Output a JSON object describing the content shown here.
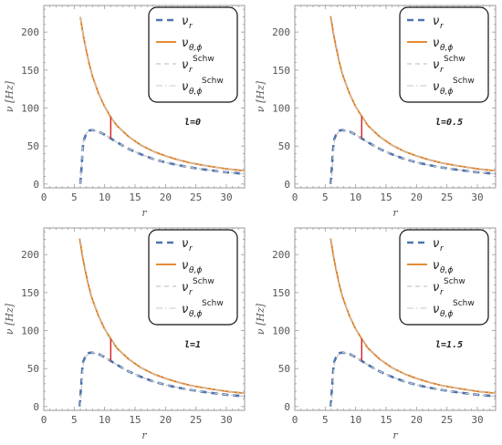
{
  "chart_data": [
    {
      "type": "line",
      "xlabel": "r",
      "ylabel": "ν [Hz]",
      "annotation": "l=0",
      "xlim": [
        0,
        33
      ],
      "ylim": [
        -5,
        235
      ],
      "xticks": [
        "0",
        "5",
        "10",
        "15",
        "20",
        "25",
        "30"
      ],
      "yticks": [
        "0",
        "50",
        "100",
        "150",
        "200"
      ],
      "legend": {
        "position": "top-right",
        "entries": [
          {
            "main": "ν",
            "sub": "r",
            "sup": ""
          },
          {
            "main": "ν",
            "sub": "θ,ϕ",
            "sup": ""
          },
          {
            "main": "ν",
            "sub": "r",
            "sup": "Schw"
          },
          {
            "main": "ν",
            "sub": "θ,ϕ",
            "sup": "Schw"
          }
        ]
      },
      "series": [
        {
          "name": "νr",
          "x": [
            6.0,
            6.5,
            7.0,
            7.5,
            8.0,
            9.0,
            10.0,
            11.0,
            12.0,
            14.0,
            16.0,
            18.0,
            20.0,
            22.0,
            24.0,
            26.0,
            28.0,
            30.0,
            33.0
          ],
          "y": [
            0,
            56,
            67,
            70.5,
            71,
            69,
            65,
            60,
            55,
            46,
            39,
            33,
            28.5,
            25,
            22,
            19.5,
            17.5,
            15.5,
            13.5
          ]
        },
        {
          "name": "νθ,ϕ",
          "x": [
            6.0,
            6.5,
            7.0,
            7.5,
            8.0,
            9.0,
            10.0,
            11.0,
            12.0,
            14.0,
            16.0,
            18.0,
            20.0,
            22.0,
            24.0,
            26.0,
            28.0,
            30.0,
            33.0
          ],
          "y": [
            220,
            195,
            175,
            157,
            142,
            119,
            102,
            88,
            77,
            62,
            51,
            43,
            37,
            32,
            28,
            25,
            22.5,
            20,
            17.5
          ]
        },
        {
          "name": "νr Schw",
          "x": [
            6.0,
            6.5,
            7.0,
            7.5,
            8.0,
            9.0,
            10.0,
            11.0,
            12.0,
            14.0,
            16.0,
            18.0,
            20.0,
            22.0,
            24.0,
            26.0,
            28.0,
            30.0,
            33.0
          ],
          "y": [
            0,
            56,
            67,
            70.5,
            71,
            69,
            65,
            60,
            55,
            46,
            39,
            33,
            28.5,
            25,
            22,
            19.5,
            17.5,
            15.5,
            13.5
          ]
        },
        {
          "name": "νθ,ϕ Schw",
          "x": [
            6.0,
            6.5,
            7.0,
            7.5,
            8.0,
            9.0,
            10.0,
            11.0,
            12.0,
            14.0,
            16.0,
            18.0,
            20.0,
            22.0,
            24.0,
            26.0,
            28.0,
            30.0,
            33.0
          ],
          "y": [
            220,
            195,
            175,
            157,
            142,
            119,
            102,
            88,
            77,
            62,
            51,
            43,
            37,
            32,
            28,
            25,
            22.5,
            20,
            17.5
          ]
        }
      ],
      "marker": {
        "x": 11,
        "y_low": 60,
        "y_high": 88
      },
      "colors": {
        "nu_r": "#4d73b0",
        "nu_theta_phi": "#e07b1a",
        "schw": "#c8c8c8",
        "marker": "#d62020",
        "frame": "#999999"
      }
    },
    {
      "type": "line",
      "xlabel": "r",
      "ylabel": "ν [Hz]",
      "annotation": "l=0.5",
      "xlim": [
        0,
        33
      ],
      "ylim": [
        -5,
        235
      ],
      "xticks": [
        "0",
        "5",
        "10",
        "15",
        "20",
        "25",
        "30"
      ],
      "yticks": [
        "0",
        "50",
        "100",
        "150",
        "200"
      ],
      "legend": {
        "position": "top-right",
        "entries": [
          {
            "main": "ν",
            "sub": "r",
            "sup": ""
          },
          {
            "main": "ν",
            "sub": "θ,ϕ",
            "sup": ""
          },
          {
            "main": "ν",
            "sub": "r",
            "sup": "Schw"
          },
          {
            "main": "ν",
            "sub": "θ,ϕ",
            "sup": "Schw"
          }
        ]
      },
      "series": [
        {
          "name": "νr",
          "x": [
            5.9,
            6.4,
            6.9,
            7.4,
            7.9,
            9.0,
            10.0,
            11.0,
            12.0,
            14.0,
            16.0,
            18.0,
            20.0,
            22.0,
            24.0,
            26.0,
            28.0,
            30.0,
            33.0
          ],
          "y": [
            0,
            57,
            67.5,
            70.5,
            71,
            69,
            65,
            60,
            55,
            46,
            39,
            33,
            28.5,
            25,
            22,
            19.5,
            17.5,
            15.5,
            13.5
          ]
        },
        {
          "name": "νθ,ϕ",
          "x": [
            5.9,
            6.4,
            6.9,
            7.4,
            7.9,
            9.0,
            10.0,
            11.0,
            12.0,
            14.0,
            16.0,
            18.0,
            20.0,
            22.0,
            24.0,
            26.0,
            28.0,
            30.0,
            33.0
          ],
          "y": [
            221,
            196,
            176,
            158,
            143,
            119,
            102,
            89,
            77,
            62,
            51,
            43,
            37,
            32,
            28,
            25,
            22.5,
            20,
            17.5
          ]
        },
        {
          "name": "νr Schw",
          "x": [
            6.0,
            6.5,
            7.0,
            7.5,
            8.0,
            9.0,
            10.0,
            11.0,
            12.0,
            14.0,
            16.0,
            18.0,
            20.0,
            22.0,
            24.0,
            26.0,
            28.0,
            30.0,
            33.0
          ],
          "y": [
            0,
            56,
            67,
            70.5,
            71,
            69,
            65,
            60,
            55,
            46,
            39,
            33,
            28.5,
            25,
            22,
            19.5,
            17.5,
            15.5,
            13.5
          ]
        },
        {
          "name": "νθ,ϕ Schw",
          "x": [
            6.0,
            6.5,
            7.0,
            7.5,
            8.0,
            9.0,
            10.0,
            11.0,
            12.0,
            14.0,
            16.0,
            18.0,
            20.0,
            22.0,
            24.0,
            26.0,
            28.0,
            30.0,
            33.0
          ],
          "y": [
            220,
            195,
            175,
            157,
            142,
            119,
            102,
            88,
            77,
            62,
            51,
            43,
            37,
            32,
            28,
            25,
            22.5,
            20,
            17.5
          ]
        }
      ],
      "marker": {
        "x": 11,
        "y_low": 60,
        "y_high": 89
      },
      "colors": {
        "nu_r": "#4d73b0",
        "nu_theta_phi": "#e07b1a",
        "schw": "#c8c8c8",
        "marker": "#d62020",
        "frame": "#999999"
      }
    },
    {
      "type": "line",
      "xlabel": "r",
      "ylabel": "ν [Hz]",
      "annotation": "l=1",
      "xlim": [
        0,
        33
      ],
      "ylim": [
        -5,
        235
      ],
      "xticks": [
        "0",
        "5",
        "10",
        "15",
        "20",
        "25",
        "30"
      ],
      "yticks": [
        "0",
        "50",
        "100",
        "150",
        "200"
      ],
      "legend": {
        "position": "top-right",
        "entries": [
          {
            "main": "ν",
            "sub": "r",
            "sup": ""
          },
          {
            "main": "ν",
            "sub": "θ,ϕ",
            "sup": ""
          },
          {
            "main": "ν",
            "sub": "r",
            "sup": "Schw"
          },
          {
            "main": "ν",
            "sub": "θ,ϕ",
            "sup": "Schw"
          }
        ]
      },
      "series": [
        {
          "name": "νr",
          "x": [
            5.9,
            6.4,
            6.9,
            7.4,
            7.9,
            9.0,
            10.0,
            11.0,
            12.0,
            14.0,
            16.0,
            18.0,
            20.0,
            22.0,
            24.0,
            26.0,
            28.0,
            30.0,
            33.0
          ],
          "y": [
            0,
            57,
            67.5,
            70.5,
            71,
            69,
            65,
            60,
            55,
            46,
            39,
            33,
            28.5,
            25,
            22,
            19.5,
            17.5,
            15.5,
            13.5
          ]
        },
        {
          "name": "νθ,ϕ",
          "x": [
            5.9,
            6.4,
            6.9,
            7.4,
            7.9,
            9.0,
            10.0,
            11.0,
            12.0,
            14.0,
            16.0,
            18.0,
            20.0,
            22.0,
            24.0,
            26.0,
            28.0,
            30.0,
            33.0
          ],
          "y": [
            221,
            196,
            176,
            158,
            143,
            119,
            102,
            89,
            77,
            62,
            51,
            43,
            37,
            32,
            28,
            25,
            22.5,
            20,
            17.5
          ]
        },
        {
          "name": "νr Schw",
          "x": [
            6.0,
            6.5,
            7.0,
            7.5,
            8.0,
            9.0,
            10.0,
            11.0,
            12.0,
            14.0,
            16.0,
            18.0,
            20.0,
            22.0,
            24.0,
            26.0,
            28.0,
            30.0,
            33.0
          ],
          "y": [
            0,
            56,
            67,
            70.5,
            71,
            69,
            65,
            60,
            55,
            46,
            39,
            33,
            28.5,
            25,
            22,
            19.5,
            17.5,
            15.5,
            13.5
          ]
        },
        {
          "name": "νθ,ϕ Schw",
          "x": [
            6.0,
            6.5,
            7.0,
            7.5,
            8.0,
            9.0,
            10.0,
            11.0,
            12.0,
            14.0,
            16.0,
            18.0,
            20.0,
            22.0,
            24.0,
            26.0,
            28.0,
            30.0,
            33.0
          ],
          "y": [
            220,
            195,
            175,
            157,
            142,
            119,
            102,
            88,
            77,
            62,
            51,
            43,
            37,
            32,
            28,
            25,
            22.5,
            20,
            17.5
          ]
        }
      ],
      "marker": {
        "x": 11,
        "y_low": 60,
        "y_high": 89
      },
      "colors": {
        "nu_r": "#4d73b0",
        "nu_theta_phi": "#e07b1a",
        "schw": "#c8c8c8",
        "marker": "#d62020",
        "frame": "#999999"
      }
    },
    {
      "type": "line",
      "xlabel": "r",
      "ylabel": "ν [Hz]",
      "annotation": "l=1.5",
      "xlim": [
        0,
        33
      ],
      "ylim": [
        -5,
        235
      ],
      "xticks": [
        "0",
        "5",
        "10",
        "15",
        "20",
        "25",
        "30"
      ],
      "yticks": [
        "0",
        "50",
        "100",
        "150",
        "200"
      ],
      "legend": {
        "position": "top-right",
        "entries": [
          {
            "main": "ν",
            "sub": "r",
            "sup": ""
          },
          {
            "main": "ν",
            "sub": "θ,ϕ",
            "sup": ""
          },
          {
            "main": "ν",
            "sub": "r",
            "sup": "Schw"
          },
          {
            "main": "ν",
            "sub": "θ,ϕ",
            "sup": "Schw"
          }
        ]
      },
      "series": [
        {
          "name": "νr",
          "x": [
            5.9,
            6.4,
            6.9,
            7.4,
            7.9,
            9.0,
            10.0,
            11.0,
            12.0,
            14.0,
            16.0,
            18.0,
            20.0,
            22.0,
            24.0,
            26.0,
            28.0,
            30.0,
            33.0
          ],
          "y": [
            0,
            57,
            67.5,
            70.5,
            71,
            69,
            65,
            60,
            55,
            46,
            39,
            33,
            28.5,
            25,
            22,
            19.5,
            17.5,
            15.5,
            13.5
          ]
        },
        {
          "name": "νθ,ϕ",
          "x": [
            5.9,
            6.4,
            6.9,
            7.4,
            7.9,
            9.0,
            10.0,
            11.0,
            12.0,
            14.0,
            16.0,
            18.0,
            20.0,
            22.0,
            24.0,
            26.0,
            28.0,
            30.0,
            33.0
          ],
          "y": [
            221,
            196,
            176,
            158,
            143,
            119,
            102,
            89,
            77,
            62,
            51,
            43,
            37,
            32,
            28,
            25,
            22.5,
            20,
            17.5
          ]
        },
        {
          "name": "νr Schw",
          "x": [
            6.0,
            6.5,
            7.0,
            7.5,
            8.0,
            9.0,
            10.0,
            11.0,
            12.0,
            14.0,
            16.0,
            18.0,
            20.0,
            22.0,
            24.0,
            26.0,
            28.0,
            30.0,
            33.0
          ],
          "y": [
            0,
            56,
            67,
            70.5,
            71,
            69,
            65,
            60,
            55,
            46,
            39,
            33,
            28.5,
            25,
            22,
            19.5,
            17.5,
            15.5,
            13.5
          ]
        },
        {
          "name": "νθ,ϕ Schw",
          "x": [
            6.0,
            6.5,
            7.0,
            7.5,
            8.0,
            9.0,
            10.0,
            11.0,
            12.0,
            14.0,
            16.0,
            18.0,
            20.0,
            22.0,
            24.0,
            26.0,
            28.0,
            30.0,
            33.0
          ],
          "y": [
            220,
            195,
            175,
            157,
            142,
            119,
            102,
            88,
            77,
            62,
            51,
            43,
            37,
            32,
            28,
            25,
            22.5,
            20,
            17.5
          ]
        }
      ],
      "marker": {
        "x": 11,
        "y_low": 60,
        "y_high": 89
      },
      "colors": {
        "nu_r": "#4d73b0",
        "nu_theta_phi": "#e07b1a",
        "schw": "#c8c8c8",
        "marker": "#d62020",
        "frame": "#999999"
      }
    }
  ]
}
